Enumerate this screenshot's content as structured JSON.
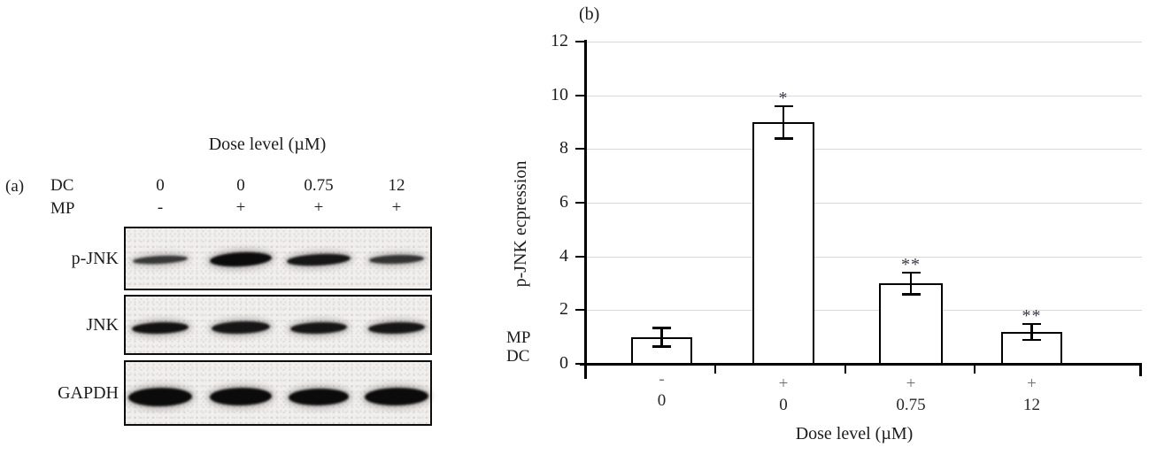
{
  "figure": {
    "panel_a_tag": "(a)",
    "panel_b_tag": "(b)"
  },
  "panel_a": {
    "label": "(a)",
    "dose_title": "Dose level (µM)",
    "rows": {
      "dc": "DC",
      "mp": "MP"
    },
    "dc_values": [
      "0",
      "0",
      "0.75",
      "12"
    ],
    "mp_values": [
      "-",
      "+",
      "+",
      "+"
    ],
    "blots": [
      {
        "label": "p-JNK",
        "band_widths": [
          62,
          70,
          72,
          62
        ],
        "band_heights": [
          9,
          16,
          13,
          10
        ],
        "band_opacity": [
          0.8,
          1.0,
          0.95,
          0.82
        ],
        "band_tilts": [
          -3,
          -3,
          -3,
          -2
        ]
      },
      {
        "label": "JNK",
        "band_widths": [
          64,
          66,
          64,
          64
        ],
        "band_heights": [
          13,
          14,
          13,
          13
        ],
        "band_opacity": [
          0.97,
          0.95,
          0.95,
          0.95
        ],
        "band_tilts": [
          -2,
          -2,
          -2,
          -2
        ]
      },
      {
        "label": "GAPDH",
        "band_widths": [
          72,
          70,
          68,
          72
        ],
        "band_heights": [
          21,
          20,
          19,
          20
        ],
        "band_opacity": [
          1.0,
          1.0,
          1.0,
          1.0
        ],
        "band_tilts": [
          -1,
          -1,
          -1,
          -1
        ]
      }
    ]
  },
  "panel_b": {
    "label": "(b)",
    "ylabel": "p-JNK ecpression",
    "xlabel": "Dose level (µM)",
    "rows": {
      "mp": "MP",
      "dc": "DC"
    }
  },
  "chart_data": {
    "type": "bar",
    "title": "",
    "xlabel": "Dose level (µM)",
    "ylabel": "p-JNK ecpression",
    "categories": [
      "MP -, DC 0",
      "MP +, DC 0",
      "MP +, DC 0.75",
      "MP +, DC 12"
    ],
    "mp_row": [
      "-",
      "+",
      "+",
      "+"
    ],
    "dc_row": [
      "0",
      "0",
      "0.75",
      "12"
    ],
    "values": [
      1.0,
      9.0,
      3.0,
      1.2
    ],
    "errors": [
      0.35,
      0.6,
      0.4,
      0.3
    ],
    "significance": [
      "",
      "*",
      "**",
      "**"
    ],
    "ylim": [
      0,
      12
    ],
    "yticks": [
      0,
      2,
      4,
      6,
      8,
      10,
      12
    ],
    "grid": true,
    "legend": false,
    "bar_fill": "#ffffff",
    "bar_border": "#000000",
    "gridline_color": "#d8d8d8",
    "sign_color": "#6f6f79",
    "sig_color": "#373744"
  }
}
